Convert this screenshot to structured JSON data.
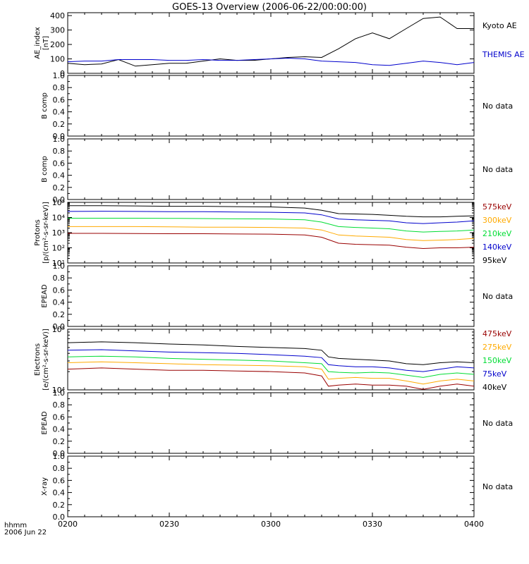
{
  "title": "GOES-13 Overview (2006-06-22/00:00:00)",
  "footer": {
    "line1": "hhmm",
    "line2": "2006 Jun 22"
  },
  "x_tick_labels": [
    "0200",
    "0230",
    "0300",
    "0330",
    "0400"
  ],
  "colors": {
    "black": "#000000",
    "blue": "#0000cc",
    "green": "#00dd33",
    "orange": "#ffaa00",
    "darkred": "#990000"
  },
  "chart_data": [
    {
      "type": "line",
      "ylabel": "AE_index\n[nT]",
      "ylim": [
        0,
        420
      ],
      "ticks": [
        0,
        100,
        200,
        300,
        400
      ],
      "tick_labels": [
        "0",
        "100",
        "200",
        "300",
        "400"
      ],
      "legend": [
        {
          "text": "Kyoto AE",
          "color": "#000000"
        },
        {
          "text": "THEMIS AE",
          "color": "#0000cc"
        }
      ],
      "x": [
        "02:00",
        "02:05",
        "02:10",
        "02:15",
        "02:20",
        "02:25",
        "02:30",
        "02:35",
        "02:40",
        "02:45",
        "02:50",
        "02:55",
        "03:00",
        "03:05",
        "03:10",
        "03:15",
        "03:20",
        "03:25",
        "03:30",
        "03:35",
        "03:40",
        "03:45",
        "03:50",
        "03:55",
        "04:00"
      ],
      "series": [
        {
          "name": "Kyoto AE",
          "color": "#000000",
          "values": [
            70,
            60,
            65,
            95,
            50,
            60,
            70,
            70,
            85,
            100,
            90,
            90,
            100,
            110,
            115,
            110,
            170,
            240,
            280,
            240,
            310,
            380,
            390,
            310,
            310
          ]
        },
        {
          "name": "THEMIS AE",
          "color": "#0000cc",
          "values": [
            80,
            85,
            85,
            95,
            95,
            95,
            90,
            90,
            95,
            90,
            90,
            95,
            100,
            105,
            100,
            85,
            80,
            75,
            60,
            55,
            70,
            85,
            75,
            60,
            75
          ]
        }
      ]
    },
    {
      "type": "line",
      "ylabel": "B comp",
      "ylim": [
        0,
        1
      ],
      "ticks": [
        0,
        0.2,
        0.4,
        0.6,
        0.8,
        1.0
      ],
      "tick_labels": [
        "0.0",
        "0.2",
        "0.4",
        "0.6",
        "0.8",
        "1.0"
      ],
      "note": "No data"
    },
    {
      "type": "line",
      "ylabel": "B comp",
      "ylim": [
        0,
        1
      ],
      "ticks": [
        0,
        0.2,
        0.4,
        0.6,
        0.8,
        1.0
      ],
      "tick_labels": [
        "0.0",
        "0.2",
        "0.4",
        "0.6",
        "0.8",
        "1.0"
      ],
      "note": "No data"
    },
    {
      "type": "line",
      "ylabel": "Protons\n[p/(cm²-s-sr-keV)]",
      "yscale": "log",
      "ylim": [
        10,
        100000
      ],
      "ticks": [
        10,
        100,
        1000,
        10000,
        100000
      ],
      "tick_labels": [
        "10¹",
        "10²",
        "10³",
        "10⁴",
        "10⁵"
      ],
      "legend": [
        {
          "text": "575keV",
          "color": "#990000"
        },
        {
          "text": "300keV",
          "color": "#ffaa00"
        },
        {
          "text": "210keV",
          "color": "#00dd33"
        },
        {
          "text": "140keV",
          "color": "#0000cc"
        },
        {
          "text": "95keV",
          "color": "#000000"
        }
      ],
      "x": [
        "02:00",
        "02:10",
        "02:20",
        "02:30",
        "02:40",
        "02:50",
        "03:00",
        "03:10",
        "03:15",
        "03:20",
        "03:25",
        "03:30",
        "03:35",
        "03:40",
        "03:45",
        "03:50",
        "03:55",
        "04:00"
      ],
      "series": [
        {
          "name": "95keV",
          "color": "#000000",
          "values": [
            60000,
            60000,
            58000,
            55000,
            55000,
            52000,
            50000,
            42000,
            30000,
            18000,
            17000,
            16000,
            14000,
            12000,
            11000,
            11000,
            12000,
            13000
          ]
        },
        {
          "name": "140keV",
          "color": "#0000cc",
          "values": [
            25000,
            26000,
            25000,
            24000,
            24000,
            23000,
            22000,
            20000,
            15000,
            8000,
            7000,
            6500,
            6000,
            4500,
            4000,
            4500,
            5000,
            6000
          ]
        },
        {
          "name": "210keV",
          "color": "#00dd33",
          "values": [
            9000,
            9000,
            9000,
            8800,
            8500,
            8200,
            8000,
            7000,
            5000,
            2500,
            2200,
            2000,
            1800,
            1300,
            1100,
            1200,
            1300,
            1500
          ]
        },
        {
          "name": "300keV",
          "color": "#ffaa00",
          "values": [
            2500,
            2500,
            2500,
            2400,
            2300,
            2300,
            2200,
            2000,
            1500,
            700,
            600,
            550,
            500,
            350,
            300,
            320,
            350,
            420
          ]
        },
        {
          "name": "575keV",
          "color": "#990000",
          "values": [
            900,
            900,
            880,
            850,
            850,
            820,
            800,
            700,
            500,
            200,
            170,
            160,
            150,
            110,
            90,
            100,
            100,
            110
          ]
        }
      ]
    },
    {
      "type": "line",
      "ylabel": "EPEAD",
      "ylim": [
        0,
        1
      ],
      "ticks": [
        0,
        0.2,
        0.4,
        0.6,
        0.8,
        1.0
      ],
      "tick_labels": [
        "0.0",
        "0.2",
        "0.4",
        "0.6",
        "0.8",
        "1.0"
      ],
      "note": "No data"
    },
    {
      "type": "line",
      "ylabel": "Electrons\n[e/(cm²-s-sr-keV)]",
      "yscale": "log",
      "ylim": [
        10000,
        100000
      ],
      "ticks": [
        10000,
        100000
      ],
      "tick_labels": [
        "10⁴",
        "10⁵"
      ],
      "legend": [
        {
          "text": "475keV",
          "color": "#990000"
        },
        {
          "text": "275keV",
          "color": "#ffaa00"
        },
        {
          "text": "150keV",
          "color": "#00dd33"
        },
        {
          "text": "75keV",
          "color": "#0000cc"
        },
        {
          "text": "40keV",
          "color": "#000000"
        }
      ],
      "x": [
        "02:00",
        "02:10",
        "02:20",
        "02:30",
        "02:40",
        "02:50",
        "03:00",
        "03:10",
        "03:15",
        "03:17",
        "03:20",
        "03:25",
        "03:30",
        "03:35",
        "03:40",
        "03:45",
        "03:50",
        "03:55",
        "04:00"
      ],
      "series": [
        {
          "name": "40keV",
          "color": "#000000",
          "values": [
            60000,
            62000,
            60000,
            57000,
            55000,
            52000,
            50000,
            48000,
            45000,
            35000,
            33000,
            32000,
            31000,
            30000,
            27000,
            26000,
            28000,
            29000,
            28000
          ]
        },
        {
          "name": "75keV",
          "color": "#0000cc",
          "values": [
            45000,
            46000,
            44000,
            42000,
            41000,
            40000,
            38000,
            36000,
            34000,
            26000,
            25000,
            24000,
            24000,
            23000,
            21000,
            20000,
            22000,
            24000,
            23000
          ]
        },
        {
          "name": "150keV",
          "color": "#00dd33",
          "values": [
            35000,
            36000,
            35000,
            33000,
            32000,
            31000,
            30000,
            28000,
            27000,
            20000,
            19500,
            19000,
            19500,
            19000,
            17500,
            16000,
            18000,
            19000,
            18000
          ]
        },
        {
          "name": "275keV",
          "color": "#ffaa00",
          "values": [
            28000,
            29000,
            28000,
            27000,
            26000,
            25500,
            25000,
            24000,
            22000,
            15000,
            15500,
            16000,
            15500,
            15500,
            14000,
            12500,
            14000,
            15000,
            14000
          ]
        },
        {
          "name": "475keV",
          "color": "#990000",
          "values": [
            22000,
            23000,
            22000,
            21000,
            21000,
            20500,
            20000,
            19000,
            17000,
            11500,
            12000,
            12500,
            12000,
            12000,
            11500,
            10200,
            11500,
            12500,
            11500
          ]
        }
      ]
    },
    {
      "type": "line",
      "ylabel": "EPEAD",
      "ylim": [
        0,
        1
      ],
      "ticks": [
        0,
        0.2,
        0.4,
        0.6,
        0.8,
        1.0
      ],
      "tick_labels": [
        "0.0",
        "0.2",
        "0.4",
        "0.6",
        "0.8",
        "1.0"
      ],
      "note": "No data"
    },
    {
      "type": "line",
      "ylabel": "X-ray",
      "ylim": [
        0,
        1
      ],
      "ticks": [
        0,
        0.2,
        0.4,
        0.6,
        0.8,
        1.0
      ],
      "tick_labels": [
        "0.0",
        "0.2",
        "0.4",
        "0.6",
        "0.8",
        "1.0"
      ],
      "note": "No data"
    }
  ]
}
